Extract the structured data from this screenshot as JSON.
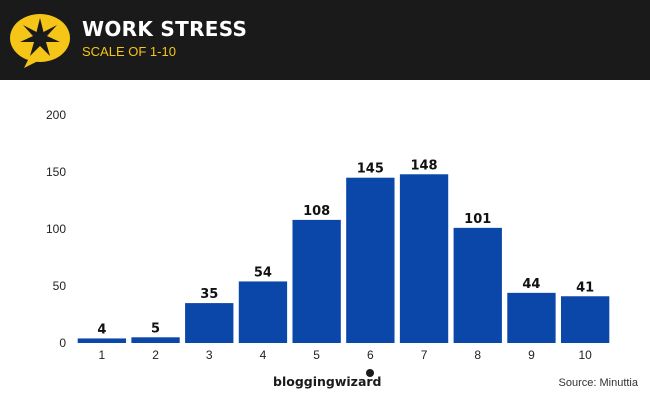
{
  "header": {
    "title": "WORK STRESS",
    "subtitle": "SCALE OF 1-10",
    "logo_icon": "star-burst-speech-bubble-icon"
  },
  "chart_data": {
    "type": "bar",
    "title": "WORK STRESS",
    "subtitle": "SCALE OF 1-10",
    "categories": [
      "1",
      "2",
      "3",
      "4",
      "5",
      "6",
      "7",
      "8",
      "9",
      "10"
    ],
    "values": [
      4,
      5,
      35,
      54,
      108,
      145,
      148,
      101,
      44,
      41
    ],
    "xlabel": "",
    "ylabel": "",
    "ylim": [
      0,
      200
    ],
    "yticks": [
      0,
      50,
      100,
      150,
      200
    ],
    "grid": false,
    "bar_color": "#0b47a8",
    "data_labels": true
  },
  "footer": {
    "brand": "bloggingwizard",
    "source": "Source: Minuttia"
  },
  "colors": {
    "header_bg": "#1a1a1a",
    "accent": "#f5c518",
    "bar": "#0b47a8"
  }
}
